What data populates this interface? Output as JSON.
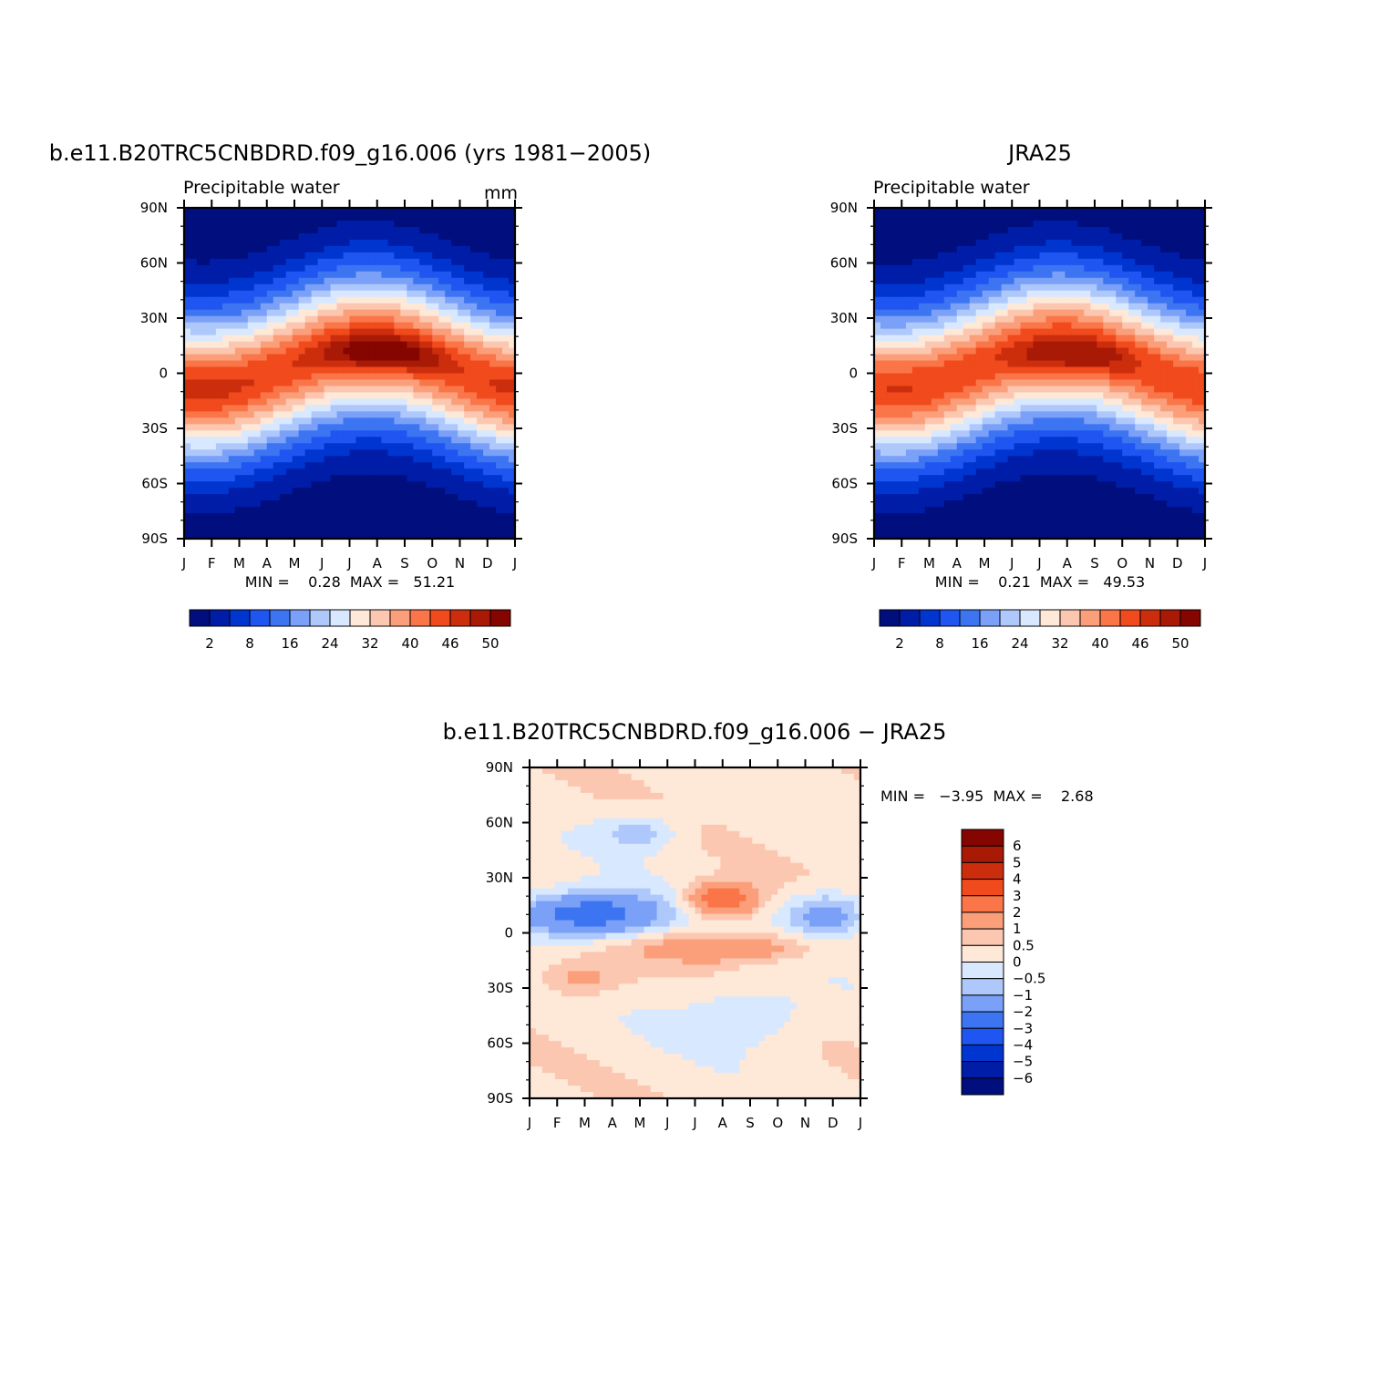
{
  "chart_data": [
    {
      "type": "heatmap",
      "id": "model",
      "title": "b.e11.B20TRC5CNBDRD.f09_g16.006 (yrs 1981−2005)",
      "left_label": "Precipitable water",
      "right_label": "mm",
      "x_tick_labels": [
        "J",
        "F",
        "M",
        "A",
        "M",
        "J",
        "J",
        "A",
        "S",
        "O",
        "N",
        "D",
        "J"
      ],
      "y_tick_labels": [
        "90N",
        "60N",
        "30N",
        "0",
        "30S",
        "60S",
        "90S"
      ],
      "ylim": [
        -90,
        90
      ],
      "stats": "MIN =    0.28  MAX =   51.21",
      "field": {
        "min": 0.28,
        "max": 51.21,
        "peak_lat_shift": 10,
        "peak_amp": 5.5
      },
      "colorbar": {
        "orientation": "horizontal",
        "levels": [
          2,
          5,
          8,
          12,
          16,
          20,
          24,
          28,
          32,
          36,
          40,
          43,
          46,
          48,
          50
        ],
        "tick_labels": [
          "2",
          "8",
          "16",
          "24",
          "32",
          "40",
          "46",
          "50"
        ],
        "colors": [
          "#000e7e",
          "#001da8",
          "#0036cf",
          "#1f55f0",
          "#3c74f2",
          "#7aa0f7",
          "#aec8fb",
          "#d8e8ff",
          "#fee8d8",
          "#fcc7b1",
          "#fb9f7b",
          "#fa7548",
          "#f04a1d",
          "#cc2e0d",
          "#a91a06",
          "#850501"
        ]
      }
    },
    {
      "type": "heatmap",
      "id": "obs",
      "title": "JRA25",
      "left_label": "Precipitable water",
      "x_tick_labels": [
        "J",
        "F",
        "M",
        "A",
        "M",
        "J",
        "J",
        "A",
        "S",
        "O",
        "N",
        "D",
        "J"
      ],
      "y_tick_labels": [
        "90N",
        "60N",
        "30N",
        "0",
        "30S",
        "60S",
        "90S"
      ],
      "ylim": [
        -90,
        90
      ],
      "stats": "MIN =    0.21  MAX =   49.53",
      "field": {
        "min": 0.21,
        "max": 49.53,
        "peak_lat_shift": 8,
        "peak_amp": 4.5
      },
      "colorbar": {
        "orientation": "horizontal",
        "levels": [
          2,
          5,
          8,
          12,
          16,
          20,
          24,
          28,
          32,
          36,
          40,
          43,
          46,
          48,
          50
        ],
        "tick_labels": [
          "2",
          "8",
          "16",
          "24",
          "32",
          "40",
          "46",
          "50"
        ],
        "colors": [
          "#000e7e",
          "#001da8",
          "#0036cf",
          "#1f55f0",
          "#3c74f2",
          "#7aa0f7",
          "#aec8fb",
          "#d8e8ff",
          "#fee8d8",
          "#fcc7b1",
          "#fb9f7b",
          "#fa7548",
          "#f04a1d",
          "#cc2e0d",
          "#a91a06",
          "#850501"
        ]
      }
    },
    {
      "type": "heatmap",
      "id": "diff",
      "title": "b.e11.B20TRC5CNBDRD.f09_g16.006 − JRA25",
      "x_tick_labels": [
        "J",
        "F",
        "M",
        "A",
        "M",
        "J",
        "J",
        "A",
        "S",
        "O",
        "N",
        "D",
        "J"
      ],
      "y_tick_labels": [
        "90N",
        "60N",
        "30N",
        "0",
        "30S",
        "60S",
        "90S"
      ],
      "ylim": [
        -90,
        90
      ],
      "stats": "MIN =   −3.95  MAX =    2.68",
      "field": {
        "min": -3.95,
        "max": 2.68
      },
      "colorbar": {
        "orientation": "vertical",
        "levels": [
          -6,
          -5,
          -4,
          -3,
          -2,
          -1,
          -0.5,
          0,
          0.5,
          1,
          2,
          3,
          4,
          5,
          6
        ],
        "tick_labels": [
          "6",
          "5",
          "4",
          "3",
          "2",
          "1",
          "0.5",
          "0",
          "−0.5",
          "−1",
          "−2",
          "−3",
          "−4",
          "−5",
          "−6"
        ],
        "colors": [
          "#000e7e",
          "#001da8",
          "#0036cf",
          "#1f55f0",
          "#3c74f2",
          "#7aa0f7",
          "#aec8fb",
          "#d8e8ff",
          "#fee8d8",
          "#fcc7b1",
          "#fb9f7b",
          "#fa7548",
          "#f04a1d",
          "#cc2e0d",
          "#a91a06",
          "#850501"
        ]
      }
    }
  ]
}
